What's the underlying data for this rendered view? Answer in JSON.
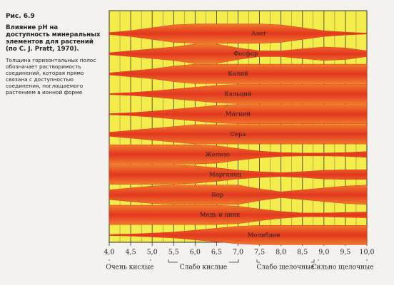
{
  "figure": {
    "number": "Рис. 6.9",
    "title": "Влияние pH на доступность минеральных элементов для растений (по C. J. Pratt, 1970).",
    "note": "Толщина горизонтальных полос обозначает растворимость соединений, которая прямо связана с доступностью соединения, поглощаемого растением в ионной форме"
  },
  "chart_data": {
    "type": "availability",
    "x": [
      4.0,
      4.5,
      5.0,
      5.5,
      6.0,
      6.5,
      7.0,
      7.5,
      8.0,
      8.5,
      9.0,
      9.5,
      10.0
    ],
    "xlim": [
      4.0,
      10.0
    ],
    "xticks": [
      {
        "value": 4.0,
        "label": "4,0"
      },
      {
        "value": 4.5,
        "label": "4,5"
      },
      {
        "value": 5.0,
        "label": "5,0"
      },
      {
        "value": 5.5,
        "label": "5,5"
      },
      {
        "value": 6.0,
        "label": "6,0"
      },
      {
        "value": 6.5,
        "label": "6,5"
      },
      {
        "value": 7.0,
        "label": "7,0"
      },
      {
        "value": 7.5,
        "label": "7,5"
      },
      {
        "value": 8.0,
        "label": "8,0"
      },
      {
        "value": 8.5,
        "label": "8,5"
      },
      {
        "value": 9.0,
        "label": "9,0"
      },
      {
        "value": 9.5,
        "label": "9,5"
      },
      {
        "value": 10.0,
        "label": "10,0"
      }
    ],
    "ranges": [
      "Очень кислые",
      "Слабо кислые",
      "Слабо щелочные",
      "Сильно щелочные"
    ],
    "color": "#e2371f",
    "series": [
      {
        "name": "Азот",
        "values": [
          0.1,
          0.3,
          0.6,
          0.9,
          1,
          1,
          1,
          1,
          0.9,
          0.6,
          0.3,
          0.15,
          0.05
        ]
      },
      {
        "name": "Фосфор",
        "values": [
          0.1,
          0.3,
          0.5,
          0.7,
          1,
          1,
          0.6,
          0.3,
          0.3,
          0.5,
          0.7,
          0.6,
          0.3
        ]
      },
      {
        "name": "Калий",
        "values": [
          0.1,
          0.3,
          0.5,
          0.8,
          1,
          1,
          1,
          1,
          1,
          1,
          1,
          1,
          1
        ]
      },
      {
        "name": "Кальций",
        "values": [
          0.05,
          0.15,
          0.3,
          0.5,
          0.7,
          0.9,
          1,
          1,
          1,
          1,
          1,
          1,
          1
        ]
      },
      {
        "name": "Магний",
        "values": [
          0.05,
          0.15,
          0.3,
          0.5,
          0.7,
          0.9,
          1,
          1,
          1,
          1,
          1,
          1,
          1
        ]
      },
      {
        "name": "Сера",
        "values": [
          0.2,
          0.4,
          0.6,
          0.8,
          1,
          1,
          1,
          1,
          1,
          1,
          1,
          1,
          1
        ]
      },
      {
        "name": "Железо",
        "values": [
          1,
          1,
          1,
          1,
          1,
          0.9,
          0.6,
          0.35,
          0.2,
          0.15,
          0.15,
          0.2,
          0.3
        ]
      },
      {
        "name": "Марганец",
        "values": [
          1,
          1,
          1,
          1,
          0.9,
          0.7,
          0.45,
          0.3,
          0.2,
          0.3,
          0.45,
          0.5,
          0.5
        ]
      },
      {
        "name": "Бор",
        "values": [
          0.5,
          0.7,
          0.9,
          1,
          1,
          1,
          1,
          0.6,
          0.3,
          0.5,
          0.7,
          0.9,
          1
        ]
      },
      {
        "name": "Медь и цинк",
        "values": [
          1,
          1,
          1,
          1,
          1,
          1,
          0.9,
          0.6,
          0.35,
          0.2,
          0.2,
          0.25,
          0.3
        ]
      },
      {
        "name": "Молибден",
        "values": [
          0.05,
          0.1,
          0.2,
          0.3,
          0.5,
          0.7,
          0.9,
          1,
          1,
          1,
          1,
          1,
          1
        ]
      }
    ]
  }
}
